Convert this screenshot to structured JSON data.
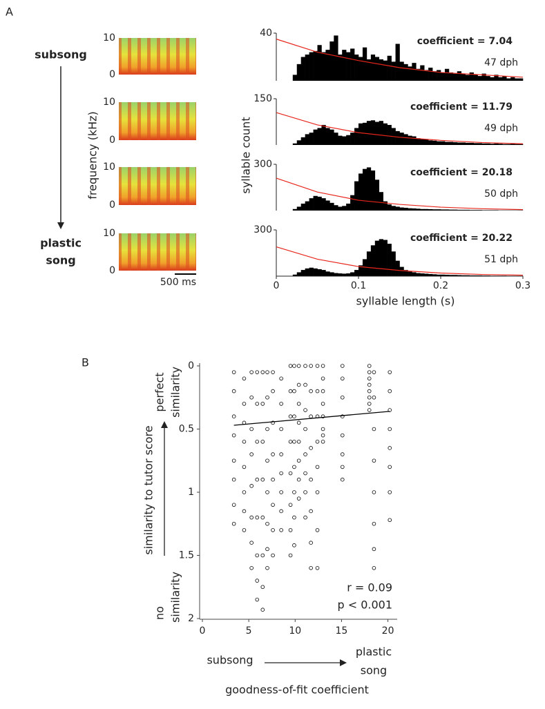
{
  "figure": {
    "panel_labels": [
      "A",
      "B"
    ],
    "stage_start": "subsong",
    "stage_end": [
      "plastic",
      "song"
    ]
  },
  "chart_data": [
    {
      "type": "spectrogram",
      "ylim": [
        0,
        10
      ],
      "yticks": [
        0,
        10
      ]
    },
    {
      "type": "spectrogram",
      "ylim": [
        0,
        10
      ],
      "yticks": [
        0,
        10
      ]
    },
    {
      "type": "spectrogram",
      "ylim": [
        0,
        10
      ],
      "yticks": [
        0,
        10
      ],
      "ylabel": "frequency (kHz)"
    },
    {
      "type": "spectrogram",
      "ylim": [
        0,
        10
      ],
      "yticks": [
        0,
        10
      ],
      "scale_bar": "500 ms"
    },
    {
      "type": "histogram",
      "color": "#000000",
      "xlim": [
        0,
        0.3
      ],
      "ylim": [
        0,
        40
      ],
      "yticks": [
        40
      ],
      "bins": [
        0,
        0.005,
        0.01,
        0.015,
        0.02,
        0.025,
        0.03,
        0.035,
        0.04,
        0.045,
        0.05,
        0.055,
        0.06,
        0.065,
        0.07,
        0.075,
        0.08,
        0.085,
        0.09,
        0.095,
        0.1,
        0.105,
        0.11,
        0.115,
        0.12,
        0.125,
        0.13,
        0.135,
        0.14,
        0.145,
        0.15,
        0.155,
        0.16,
        0.165,
        0.17,
        0.175,
        0.18,
        0.185,
        0.19,
        0.195,
        0.2,
        0.205,
        0.21,
        0.215,
        0.22,
        0.225,
        0.23,
        0.235,
        0.24,
        0.245,
        0.25,
        0.255,
        0.26,
        0.265,
        0.27,
        0.275,
        0.28,
        0.285,
        0.29,
        0.295,
        0.3
      ],
      "values": [
        0,
        0,
        0,
        0,
        5,
        14,
        20,
        22,
        24,
        25,
        30,
        24,
        26,
        33,
        38,
        22,
        26,
        24,
        27,
        22,
        20,
        28,
        18,
        22,
        20,
        18,
        17,
        21,
        16,
        31,
        16,
        14,
        12,
        15,
        10,
        13,
        9,
        11,
        8,
        9,
        7,
        10,
        7,
        6,
        8,
        6,
        5,
        7,
        5,
        4,
        6,
        4,
        3,
        5,
        3,
        4,
        2,
        3,
        2,
        2
      ],
      "fit_line": {
        "color": "#e8261c",
        "x": [
          0,
          0.05,
          0.1,
          0.15,
          0.2,
          0.25,
          0.3
        ],
        "values": [
          35,
          24,
          17,
          11,
          7,
          5,
          3
        ]
      },
      "annotations": [
        "coefficient = 7.04",
        "47 dph"
      ]
    },
    {
      "type": "histogram",
      "color": "#000000",
      "xlim": [
        0,
        0.3
      ],
      "ylim": [
        0,
        150
      ],
      "yticks": [
        150
      ],
      "bins": [
        0,
        0.005,
        0.01,
        0.015,
        0.02,
        0.025,
        0.03,
        0.035,
        0.04,
        0.045,
        0.05,
        0.055,
        0.06,
        0.065,
        0.07,
        0.075,
        0.08,
        0.085,
        0.09,
        0.095,
        0.1,
        0.105,
        0.11,
        0.115,
        0.12,
        0.125,
        0.13,
        0.135,
        0.14,
        0.145,
        0.15,
        0.155,
        0.16,
        0.165,
        0.17,
        0.175,
        0.18,
        0.185,
        0.19,
        0.195,
        0.2,
        0.205,
        0.21,
        0.215,
        0.22,
        0.225,
        0.23,
        0.235,
        0.24,
        0.245,
        0.25,
        0.255,
        0.26,
        0.265,
        0.27,
        0.275,
        0.28,
        0.285,
        0.29,
        0.295,
        0.3
      ],
      "values": [
        0,
        0,
        0,
        0,
        5,
        15,
        25,
        35,
        40,
        50,
        55,
        65,
        55,
        50,
        40,
        30,
        28,
        32,
        40,
        55,
        70,
        72,
        78,
        80,
        75,
        78,
        70,
        65,
        55,
        45,
        40,
        35,
        30,
        28,
        22,
        20,
        18,
        15,
        14,
        12,
        12,
        10,
        10,
        9,
        8,
        8,
        7,
        7,
        6,
        6,
        5,
        5,
        4,
        5,
        4,
        3,
        3,
        4,
        3,
        3
      ],
      "fit_line": {
        "color": "#e8261c",
        "x": [
          0,
          0.05,
          0.1,
          0.15,
          0.2,
          0.25,
          0.3
        ],
        "values": [
          105,
          65,
          40,
          25,
          15,
          8,
          4
        ]
      },
      "annotations": [
        "coefficient = 11.79",
        "49 dph"
      ]
    },
    {
      "type": "histogram",
      "color": "#000000",
      "xlim": [
        0,
        0.3
      ],
      "ylim": [
        0,
        300
      ],
      "yticks": [
        300
      ],
      "ylabel": "syllable count",
      "bins": [
        0,
        0.005,
        0.01,
        0.015,
        0.02,
        0.025,
        0.03,
        0.035,
        0.04,
        0.045,
        0.05,
        0.055,
        0.06,
        0.065,
        0.07,
        0.075,
        0.08,
        0.085,
        0.09,
        0.095,
        0.1,
        0.105,
        0.11,
        0.115,
        0.12,
        0.125,
        0.13,
        0.135,
        0.14,
        0.145,
        0.15,
        0.155,
        0.16,
        0.165,
        0.17,
        0.175,
        0.18,
        0.185,
        0.19,
        0.195,
        0.2,
        0.205,
        0.21,
        0.215,
        0.22,
        0.225,
        0.23,
        0.235,
        0.24,
        0.245,
        0.25,
        0.255,
        0.26,
        0.265,
        0.27,
        0.275,
        0.28,
        0.285,
        0.29,
        0.295,
        0.3
      ],
      "values": [
        0,
        0,
        0,
        0,
        10,
        25,
        45,
        60,
        80,
        95,
        90,
        80,
        65,
        50,
        35,
        25,
        30,
        45,
        100,
        190,
        240,
        270,
        280,
        260,
        200,
        120,
        60,
        40,
        30,
        25,
        20,
        18,
        15,
        14,
        12,
        10,
        10,
        9,
        8,
        8,
        7,
        7,
        6,
        6,
        5,
        5,
        5,
        4,
        4,
        4,
        3,
        3,
        3,
        3,
        2,
        2,
        2,
        2,
        2,
        2
      ],
      "fit_line": {
        "color": "#e8261c",
        "x": [
          0,
          0.05,
          0.1,
          0.15,
          0.2,
          0.25,
          0.3
        ],
        "values": [
          210,
          120,
          67,
          40,
          22,
          12,
          6
        ]
      },
      "annotations": [
        "coefficient = 20.18",
        "50 dph"
      ]
    },
    {
      "type": "histogram",
      "color": "#000000",
      "xlim": [
        0,
        0.3
      ],
      "ylim": [
        0,
        300
      ],
      "yticks": [
        300
      ],
      "xticks": [
        0,
        0.1,
        0.2,
        0.3
      ],
      "xlabel": "syllable length (s)",
      "bins": [
        0,
        0.005,
        0.01,
        0.015,
        0.02,
        0.025,
        0.03,
        0.035,
        0.04,
        0.045,
        0.05,
        0.055,
        0.06,
        0.065,
        0.07,
        0.075,
        0.08,
        0.085,
        0.09,
        0.095,
        0.1,
        0.105,
        0.11,
        0.115,
        0.12,
        0.125,
        0.13,
        0.135,
        0.14,
        0.145,
        0.15,
        0.155,
        0.16,
        0.165,
        0.17,
        0.175,
        0.18,
        0.185,
        0.19,
        0.195,
        0.2,
        0.205,
        0.21,
        0.215,
        0.22,
        0.225,
        0.23,
        0.235,
        0.24,
        0.245,
        0.25,
        0.255,
        0.26,
        0.265,
        0.27,
        0.275,
        0.28,
        0.285,
        0.29,
        0.295,
        0.3
      ],
      "values": [
        0,
        0,
        0,
        0,
        10,
        25,
        40,
        50,
        55,
        50,
        45,
        40,
        30,
        25,
        20,
        18,
        16,
        18,
        25,
        40,
        70,
        110,
        160,
        200,
        230,
        240,
        235,
        210,
        160,
        100,
        60,
        40,
        30,
        25,
        20,
        18,
        16,
        14,
        12,
        10,
        10,
        9,
        8,
        8,
        7,
        6,
        6,
        5,
        5,
        5,
        4,
        4,
        3,
        3,
        3,
        3,
        2,
        2,
        2,
        2
      ],
      "fit_line": {
        "color": "#e8261c",
        "x": [
          0,
          0.05,
          0.1,
          0.15,
          0.2,
          0.25,
          0.3
        ],
        "values": [
          190,
          110,
          62,
          37,
          20,
          11,
          6
        ]
      },
      "annotations": [
        "coefficient = 20.22",
        "51 dph"
      ]
    },
    {
      "type": "scatter",
      "color": "#000000",
      "marker": "circle",
      "y_inverted": true,
      "xlim": [
        0,
        21
      ],
      "xticks": [
        0,
        5,
        10,
        15,
        20
      ],
      "ylim": [
        0,
        2
      ],
      "yticks": [
        0,
        0.5,
        1,
        1.5,
        2
      ],
      "xlabel": "goodness-of-fit coefficient",
      "ylabel": "similarity to tutor score",
      "y_top_label": [
        "perfect",
        "similarity"
      ],
      "y_bottom_label": [
        "no",
        "similarity"
      ],
      "x_left_label": "subsong",
      "x_right_label": [
        "plastic",
        "song"
      ],
      "annotations": [
        "r = 0.09",
        "p < 0.001"
      ],
      "fit_line": {
        "color": "#000000",
        "x": [
          3.4,
          20.2
        ],
        "values": [
          0.47,
          0.36
        ]
      },
      "x": [
        3.4,
        3.4,
        3.4,
        3.4,
        3.4,
        3.4,
        3.4,
        3.4,
        4.5,
        4.5,
        4.5,
        4.5,
        4.5,
        4.5,
        4.5,
        4.5,
        5.3,
        5.3,
        5.3,
        5.3,
        5.3,
        5.3,
        5.3,
        5.3,
        5.9,
        5.9,
        5.9,
        5.9,
        5.9,
        5.9,
        5.9,
        5.9,
        6.5,
        6.5,
        6.5,
        6.5,
        6.5,
        6.5,
        6.5,
        6.5,
        7,
        7,
        7,
        7,
        7,
        7,
        7,
        7,
        7.6,
        7.6,
        7.6,
        7.6,
        7.6,
        7.6,
        7.6,
        7.6,
        8.5,
        8.5,
        8.5,
        8.5,
        8.5,
        8.5,
        8.5,
        8.5,
        9.5,
        9.5,
        9.5,
        9.5,
        9.5,
        9.5,
        9.5,
        9.5,
        9.9,
        9.9,
        9.9,
        9.9,
        9.9,
        9.9,
        9.9,
        9.9,
        10.4,
        10.4,
        10.4,
        10.4,
        10.4,
        10.4,
        10.4,
        10.4,
        11.1,
        11.1,
        11.1,
        11.1,
        11.1,
        11.1,
        11.1,
        11.1,
        11.7,
        11.7,
        11.7,
        11.7,
        11.7,
        11.7,
        11.7,
        11.7,
        12.4,
        12.4,
        12.4,
        12.4,
        12.4,
        12.4,
        12.4,
        12.4,
        13,
        13,
        13,
        13,
        13,
        13,
        13,
        13,
        15.1,
        15.1,
        15.1,
        15.1,
        15.1,
        15.1,
        15.1,
        15.1,
        18,
        18,
        18,
        18,
        18,
        18,
        18,
        18,
        18.5,
        18.5,
        18.5,
        18.5,
        18.5,
        18.5,
        18.5,
        18.5,
        20.2,
        20.2,
        20.2,
        20.2,
        20.2,
        20.2,
        20.2,
        20.2
      ],
      "values": [
        0.05,
        0.2,
        0.4,
        0.55,
        0.75,
        0.9,
        1.1,
        1.25,
        0.1,
        0.3,
        0.45,
        0.6,
        0.8,
        1,
        1.15,
        1.3,
        0.05,
        0.25,
        0.5,
        0.7,
        0.95,
        1.2,
        1.4,
        1.6,
        0.05,
        0.3,
        0.6,
        0.9,
        1.2,
        1.5,
        1.7,
        1.85,
        0.05,
        0.3,
        0.6,
        0.9,
        1.2,
        1.5,
        1.75,
        1.93,
        0.05,
        0.25,
        0.5,
        0.75,
        1,
        1.25,
        1.45,
        1.6,
        0.05,
        0.2,
        0.45,
        0.7,
        0.9,
        1.1,
        1.3,
        1.5,
        0.1,
        0.3,
        0.5,
        0.7,
        0.85,
        1,
        1.15,
        1.3,
        0,
        0.2,
        0.4,
        0.6,
        0.85,
        1.1,
        1.3,
        1.5,
        0,
        0.2,
        0.4,
        0.6,
        0.8,
        1,
        1.2,
        1.42,
        0,
        0.15,
        0.3,
        0.45,
        0.6,
        0.75,
        0.9,
        1.05,
        0,
        0.15,
        0.35,
        0.5,
        0.7,
        0.85,
        1,
        1.2,
        0,
        0.2,
        0.4,
        0.65,
        0.9,
        1.15,
        1.4,
        1.6,
        0,
        0.2,
        0.4,
        0.6,
        0.8,
        1,
        1.3,
        1.6,
        0,
        0.1,
        0.2,
        0.3,
        0.4,
        0.5,
        0.55,
        0.6,
        0,
        0.1,
        0.25,
        0.4,
        0.55,
        0.7,
        0.8,
        0.9,
        0,
        0.05,
        0.1,
        0.15,
        0.2,
        0.25,
        0.3,
        0.35,
        0.05,
        0.25,
        0.5,
        0.75,
        1,
        1.25,
        1.45,
        1.6,
        0.05,
        0.2,
        0.35,
        0.5,
        0.65,
        0.8,
        1,
        1.22
      ]
    }
  ]
}
